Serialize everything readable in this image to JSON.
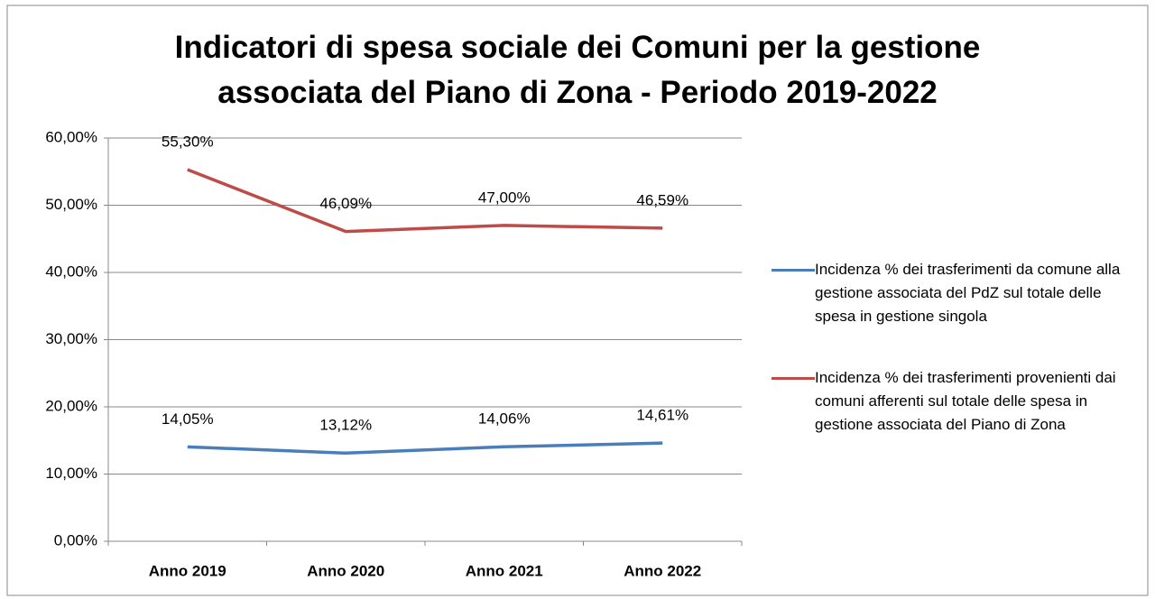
{
  "chart_data": {
    "type": "line",
    "title": "Indicatori di spesa sociale dei Comuni per la gestione associata del Piano di Zona - Periodo 2019-2022",
    "categories": [
      "Anno 2019",
      "Anno 2020",
      "Anno 2021",
      "Anno 2022"
    ],
    "series": [
      {
        "name": "Incidenza % dei trasferimenti da comune alla gestione associata del PdZ sul totale delle spesa in gestione singola",
        "color": "#4a7ebb",
        "values": [
          14.05,
          13.12,
          14.06,
          14.61
        ],
        "value_labels": [
          "14,05%",
          "13,12%",
          "14,06%",
          "14,61%"
        ]
      },
      {
        "name": "Incidenza % dei trasferimenti provenienti dai comuni afferenti sul totale delle spesa in gestione associata del Piano di Zona",
        "color": "#be4b48",
        "values": [
          55.3,
          46.09,
          47.0,
          46.59
        ],
        "value_labels": [
          "55,30%",
          "46,09%",
          "47,00%",
          "46,59%"
        ]
      }
    ],
    "ylim": [
      0,
      60
    ],
    "yticks": [
      {
        "value": 0,
        "label": "0,00%"
      },
      {
        "value": 10,
        "label": "10,00%"
      },
      {
        "value": 20,
        "label": "20,00%"
      },
      {
        "value": 30,
        "label": "30,00%"
      },
      {
        "value": 40,
        "label": "40,00%"
      },
      {
        "value": 50,
        "label": "50,00%"
      },
      {
        "value": 60,
        "label": "60,00%"
      }
    ],
    "grid": true,
    "legend": "right"
  }
}
